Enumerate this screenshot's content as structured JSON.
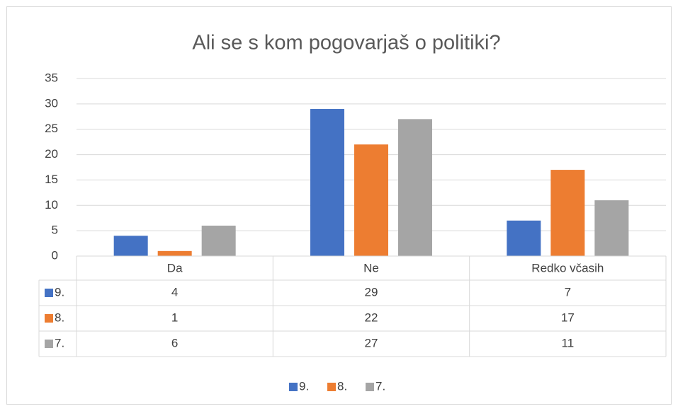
{
  "chart_data": {
    "type": "bar",
    "title": "Ali se s kom pogovarjaš o politiki?",
    "categories": [
      "Da",
      "Ne",
      "Redko včasih"
    ],
    "series": [
      {
        "name": "9.",
        "color": "#4472c4",
        "values": [
          4,
          29,
          7
        ]
      },
      {
        "name": "8.",
        "color": "#ed7d31",
        "values": [
          1,
          22,
          17
        ]
      },
      {
        "name": "7.",
        "color": "#a5a5a5",
        "values": [
          6,
          27,
          11
        ]
      }
    ],
    "ylim": [
      0,
      35
    ],
    "yticks": [
      0,
      5,
      10,
      15,
      20,
      25,
      30,
      35
    ],
    "grid": true,
    "legend": "bottom",
    "data_table": true
  }
}
